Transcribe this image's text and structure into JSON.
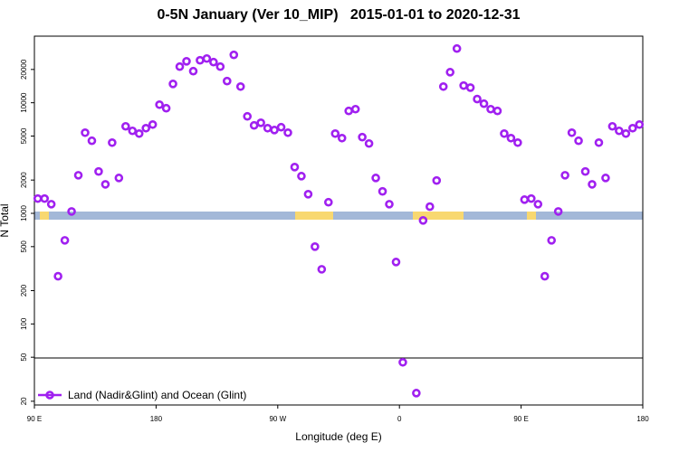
{
  "chart_data": {
    "type": "scatter",
    "title": "0-5N January (Ver 10_MIP)   2015-01-01 to 2020-12-31",
    "x_label": "Longitude (deg E)",
    "y_label": "N Total",
    "log_y": true,
    "grid": false,
    "legend": "lower-left",
    "xlim": [
      90,
      540
    ],
    "xticks": [
      {
        "value": 90,
        "label": "90 E"
      },
      {
        "value": 180,
        "label": "180"
      },
      {
        "value": 270,
        "label": "90 W"
      },
      {
        "value": 360,
        "label": "0"
      },
      {
        "value": 450,
        "label": "90 E"
      },
      {
        "value": 540,
        "label": "180"
      }
    ],
    "ylim": [
      18.5,
      40000
    ],
    "yticks": [
      20,
      50,
      100,
      200,
      500,
      1000,
      2000,
      5000,
      10000,
      20000
    ],
    "series": [
      {
        "name": "Land (Nadir&Glint) and Ocean (Glint)",
        "color": "#a020f0",
        "x": [
          92.5,
          97.5,
          102.5,
          107.5,
          112.5,
          117.5,
          122.5,
          127.5,
          132.5,
          137.5,
          142.5,
          147.5,
          152.5,
          157.5,
          162.5,
          167.5,
          172.5,
          177.5,
          182.5,
          187.5,
          192.5,
          197.5,
          202.5,
          207.5,
          212.5,
          217.5,
          222.5,
          227.5,
          232.5,
          237.5,
          242.5,
          247.5,
          252.5,
          257.5,
          262.5,
          267.5,
          272.5,
          277.5,
          282.5,
          287.5,
          292.5,
          297.5,
          302.5,
          307.5,
          312.5,
          317.5,
          322.5,
          327.5,
          332.5,
          337.5,
          342.5,
          347.5,
          352.5,
          357.5,
          362.5,
          372.5,
          377.5,
          382.5,
          387.5,
          392.5,
          397.5,
          402.5,
          407.5,
          412.5,
          417.5,
          422.5,
          427.5,
          432.5,
          437.5,
          442.5,
          447.5,
          452.5,
          457.5,
          462.5,
          467.5,
          472.5,
          477.5,
          482.5,
          487.5,
          492.5,
          497.5,
          502.5,
          507.5,
          512.5,
          517.5,
          522.5,
          527.5,
          532.5,
          537.5
        ],
        "values": [
          1360,
          1360,
          1210,
          270,
          570,
          1040,
          2210,
          5360,
          4530,
          2390,
          1830,
          4360,
          2090,
          6120,
          5570,
          5260,
          5890,
          6350,
          9610,
          8920,
          14800,
          21200,
          23700,
          19300,
          24200,
          25100,
          23300,
          21200,
          15700,
          27100,
          14000,
          7530,
          6240,
          6590,
          5890,
          5670,
          6010,
          5360,
          2620,
          2170,
          1490,
          500,
          312,
          1260,
          5260,
          4790,
          8430,
          8750,
          4890,
          4280,
          2090,
          1580,
          1210,
          363,
          45,
          23.7,
          863,
          1150,
          1980,
          14000,
          18900,
          30900,
          14300,
          13700,
          10800,
          9800,
          8750,
          8430,
          5260,
          4790,
          4360,
          1330,
          1360,
          1210,
          270,
          570,
          1040,
          2210,
          5360,
          4530,
          2390,
          1830,
          4360,
          2090,
          6120,
          5570,
          5260,
          5890,
          6350
        ]
      }
    ]
  }
}
